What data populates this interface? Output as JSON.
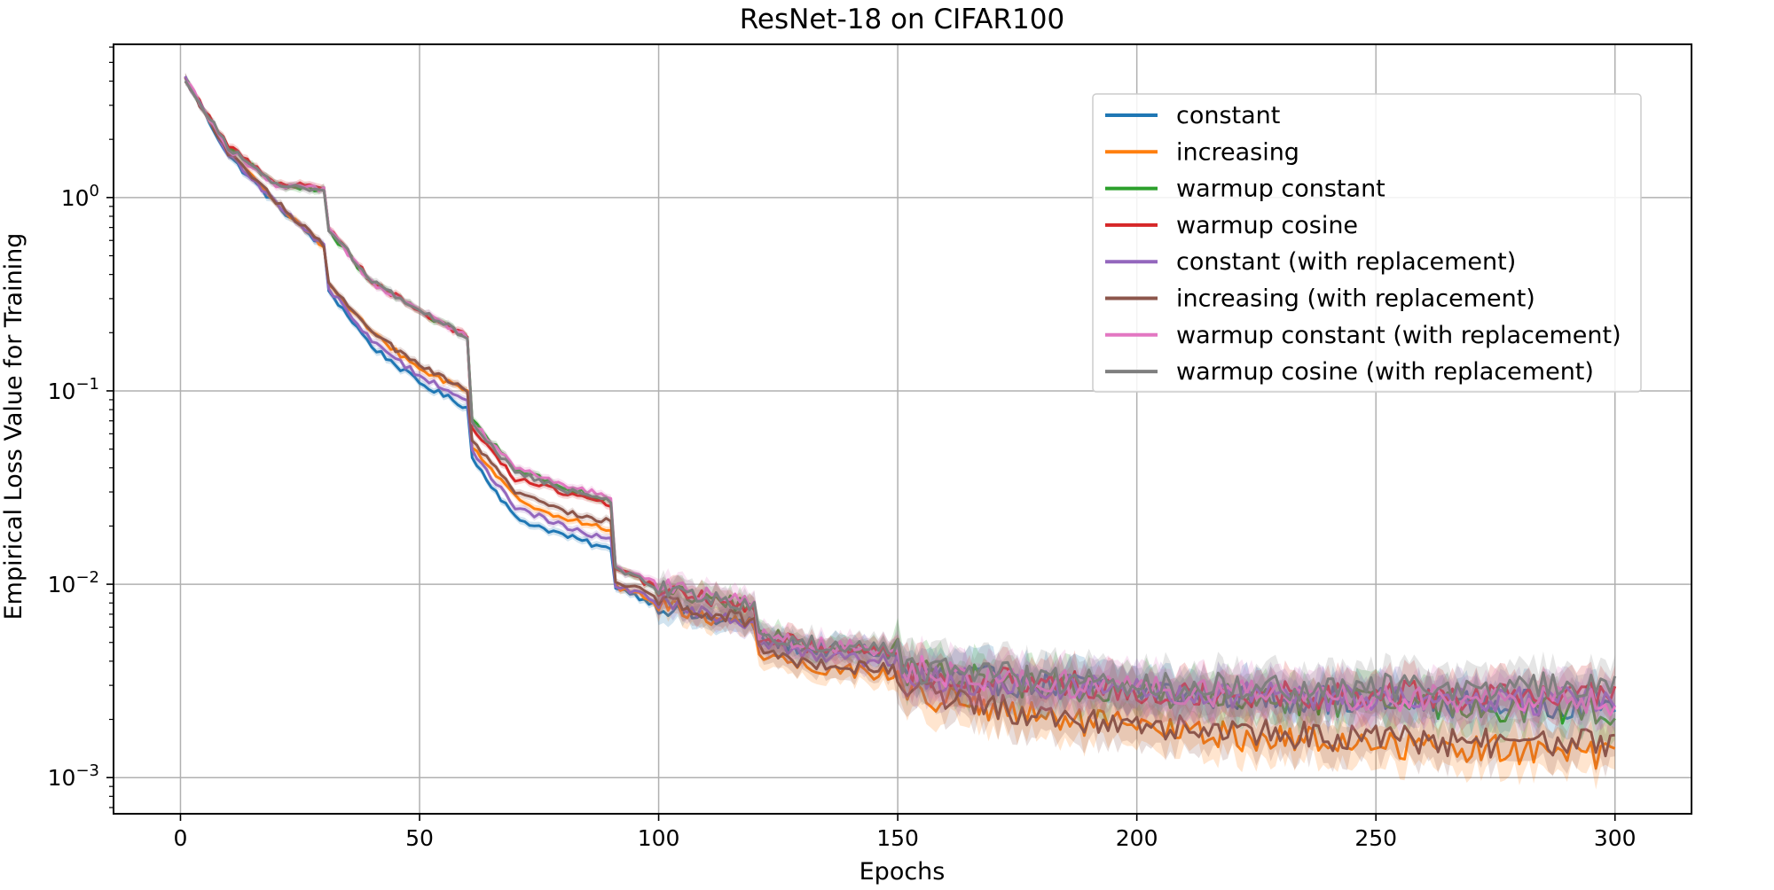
{
  "chart_data": {
    "type": "line",
    "title": "ResNet-18 on CIFAR100",
    "xlabel": "Epochs",
    "ylabel": "Empirical Loss Value for Training",
    "xlim": [
      -14,
      316
    ],
    "ylim": [
      0.00065,
      6.2
    ],
    "yscale": "log",
    "grid": true,
    "legend_position": "top-right",
    "x_ticks": [
      0,
      50,
      100,
      150,
      200,
      250,
      300
    ],
    "y_ticks": [
      {
        "value": 0.001,
        "base": "10",
        "exp": "−3"
      },
      {
        "value": 0.01,
        "base": "10",
        "exp": "−2"
      },
      {
        "value": 0.1,
        "base": "10",
        "exp": "−1"
      },
      {
        "value": 1,
        "base": "10",
        "exp": "0"
      }
    ],
    "series": [
      {
        "name": "constant",
        "color": "#1f77b4",
        "x": [
          1,
          10,
          20,
          30,
          31,
          40,
          50,
          60,
          61,
          70,
          80,
          90,
          91,
          100,
          110,
          120,
          121,
          130,
          150,
          151,
          175,
          200,
          225,
          250,
          275,
          300
        ],
        "y": [
          4.1,
          1.65,
          0.92,
          0.55,
          0.33,
          0.17,
          0.11,
          0.082,
          0.045,
          0.022,
          0.018,
          0.015,
          0.0098,
          0.0077,
          0.0066,
          0.0062,
          0.0052,
          0.0047,
          0.0044,
          0.0035,
          0.0031,
          0.0028,
          0.0026,
          0.0025,
          0.0024,
          0.0024
        ]
      },
      {
        "name": "increasing",
        "color": "#ff7f0e",
        "x": [
          1,
          10,
          20,
          30,
          31,
          40,
          50,
          60,
          61,
          70,
          80,
          90,
          91,
          100,
          110,
          120,
          121,
          130,
          150,
          151,
          175,
          200,
          225,
          250,
          275,
          300
        ],
        "y": [
          4.1,
          1.7,
          0.95,
          0.56,
          0.35,
          0.2,
          0.13,
          0.1,
          0.052,
          0.028,
          0.022,
          0.019,
          0.0098,
          0.008,
          0.0068,
          0.0062,
          0.0045,
          0.0038,
          0.0034,
          0.0028,
          0.0021,
          0.0018,
          0.0016,
          0.0015,
          0.0014,
          0.0013
        ]
      },
      {
        "name": "warmup constant",
        "color": "#2ca02c",
        "x": [
          1,
          10,
          20,
          30,
          31,
          40,
          50,
          60,
          61,
          70,
          80,
          90,
          91,
          100,
          110,
          120,
          121,
          130,
          150,
          151,
          175,
          200,
          225,
          250,
          275,
          300
        ],
        "y": [
          4.1,
          1.8,
          1.15,
          1.1,
          0.68,
          0.36,
          0.26,
          0.19,
          0.07,
          0.04,
          0.032,
          0.027,
          0.012,
          0.0095,
          0.0085,
          0.0075,
          0.0056,
          0.0049,
          0.0044,
          0.0036,
          0.0031,
          0.0028,
          0.0025,
          0.0024,
          0.0023,
          0.0022
        ]
      },
      {
        "name": "warmup cosine",
        "color": "#d62728",
        "x": [
          1,
          10,
          20,
          30,
          31,
          40,
          50,
          60,
          61,
          70,
          80,
          90,
          91,
          100,
          110,
          120,
          121,
          130,
          150,
          151,
          175,
          200,
          225,
          250,
          275,
          300
        ],
        "y": [
          4.1,
          1.85,
          1.2,
          1.12,
          0.7,
          0.37,
          0.26,
          0.19,
          0.065,
          0.035,
          0.03,
          0.026,
          0.012,
          0.0095,
          0.0085,
          0.0075,
          0.0055,
          0.0049,
          0.0045,
          0.0036,
          0.0031,
          0.0029,
          0.0027,
          0.0027,
          0.0026,
          0.0027
        ]
      },
      {
        "name": "constant (with replacement)",
        "color": "#9467bd",
        "x": [
          1,
          10,
          20,
          30,
          31,
          40,
          50,
          60,
          61,
          70,
          80,
          90,
          91,
          100,
          110,
          120,
          121,
          130,
          150,
          151,
          175,
          200,
          225,
          250,
          275,
          300
        ],
        "y": [
          4.1,
          1.68,
          0.94,
          0.56,
          0.34,
          0.18,
          0.12,
          0.09,
          0.048,
          0.025,
          0.02,
          0.017,
          0.0098,
          0.0082,
          0.0069,
          0.0063,
          0.0049,
          0.0044,
          0.004,
          0.0033,
          0.003,
          0.0028,
          0.0026,
          0.0026,
          0.0025,
          0.0025
        ]
      },
      {
        "name": "increasing (with replacement)",
        "color": "#8c564b",
        "x": [
          1,
          10,
          20,
          30,
          31,
          40,
          50,
          60,
          61,
          70,
          80,
          90,
          91,
          100,
          110,
          120,
          121,
          130,
          150,
          151,
          175,
          200,
          225,
          250,
          275,
          300
        ],
        "y": [
          4.1,
          1.7,
          0.96,
          0.56,
          0.36,
          0.2,
          0.135,
          0.1,
          0.055,
          0.03,
          0.024,
          0.021,
          0.0105,
          0.0085,
          0.0072,
          0.0065,
          0.0047,
          0.004,
          0.0036,
          0.0029,
          0.0022,
          0.0019,
          0.0017,
          0.0016,
          0.0015,
          0.0015
        ]
      },
      {
        "name": "warmup constant (with replacement)",
        "color": "#e377c2",
        "x": [
          1,
          10,
          20,
          30,
          31,
          40,
          50,
          60,
          61,
          70,
          80,
          90,
          91,
          100,
          110,
          120,
          121,
          130,
          150,
          151,
          175,
          200,
          225,
          250,
          275,
          300
        ],
        "y": [
          4.1,
          1.8,
          1.14,
          1.1,
          0.68,
          0.36,
          0.26,
          0.19,
          0.07,
          0.04,
          0.033,
          0.028,
          0.012,
          0.01,
          0.0088,
          0.0078,
          0.0056,
          0.005,
          0.0046,
          0.0037,
          0.0032,
          0.0029,
          0.0027,
          0.0026,
          0.0025,
          0.0025
        ]
      },
      {
        "name": "warmup cosine (with replacement)",
        "color": "#7f7f7f",
        "x": [
          1,
          10,
          20,
          30,
          31,
          40,
          50,
          60,
          61,
          70,
          80,
          90,
          91,
          100,
          110,
          120,
          121,
          130,
          150,
          151,
          175,
          200,
          225,
          250,
          275,
          300
        ],
        "y": [
          4.1,
          1.82,
          1.16,
          1.1,
          0.69,
          0.37,
          0.26,
          0.19,
          0.068,
          0.038,
          0.031,
          0.027,
          0.012,
          0.0096,
          0.0086,
          0.0076,
          0.0057,
          0.005,
          0.0046,
          0.0037,
          0.0033,
          0.003,
          0.0029,
          0.0029,
          0.0029,
          0.003
        ]
      }
    ]
  }
}
